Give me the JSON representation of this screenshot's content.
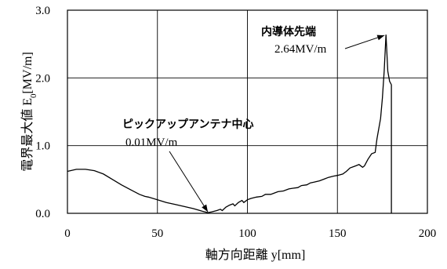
{
  "chart_data": {
    "type": "line",
    "xlabel": "軸方向距離 y[mm]",
    "ylabel_main": "電界最大値 E",
    "ylabel_sub": "0",
    "ylabel_tail": "[MV/m]",
    "xlim": [
      0,
      200
    ],
    "ylim": [
      0.0,
      3.0
    ],
    "xticks": [
      0,
      50,
      100,
      150,
      200
    ],
    "yticks": [
      0.0,
      1.0,
      2.0,
      3.0
    ],
    "xtick_labels": [
      "0",
      "50",
      "100",
      "150",
      "200"
    ],
    "ytick_labels": [
      "0.0",
      "1.0",
      "2.0",
      "3.0"
    ],
    "grid": true,
    "series": [
      {
        "x": [
          0,
          5,
          10,
          15,
          20,
          25,
          30,
          35,
          40,
          43,
          45,
          50,
          55,
          60,
          65,
          70,
          75,
          78,
          80,
          83,
          85,
          86,
          88,
          90,
          92,
          93,
          95,
          97,
          98,
          100,
          102,
          105,
          108,
          110,
          113,
          115,
          117,
          120,
          123,
          125,
          128,
          130,
          133,
          135,
          137,
          140,
          143,
          145,
          148,
          150,
          153,
          155,
          157,
          160,
          162,
          164,
          165,
          167,
          169,
          171,
          172,
          174,
          175,
          176,
          177,
          178,
          179,
          180
        ],
        "y": [
          0.62,
          0.65,
          0.65,
          0.63,
          0.58,
          0.5,
          0.42,
          0.35,
          0.28,
          0.25,
          0.24,
          0.2,
          0.16,
          0.13,
          0.1,
          0.07,
          0.03,
          0.01,
          0.02,
          0.04,
          0.06,
          0.04,
          0.09,
          0.12,
          0.14,
          0.11,
          0.16,
          0.19,
          0.16,
          0.2,
          0.22,
          0.24,
          0.25,
          0.28,
          0.28,
          0.3,
          0.32,
          0.33,
          0.36,
          0.37,
          0.38,
          0.41,
          0.42,
          0.45,
          0.46,
          0.48,
          0.51,
          0.53,
          0.55,
          0.56,
          0.58,
          0.62,
          0.67,
          0.7,
          0.72,
          0.68,
          0.7,
          0.8,
          0.88,
          0.9,
          1.1,
          1.4,
          1.7,
          2.1,
          2.64,
          2.1,
          1.95,
          1.9
        ]
      }
    ],
    "drop_line": {
      "x": 180,
      "y_from": 1.9,
      "y_to": 0.0
    },
    "annotations": [
      {
        "label": "内導体先端",
        "value": "2.64MV/m",
        "point": [
          177,
          2.64
        ]
      },
      {
        "label": "ピックアップアンテナ中心",
        "value": "0.01MV/m",
        "point": [
          78,
          0.01
        ]
      }
    ]
  }
}
